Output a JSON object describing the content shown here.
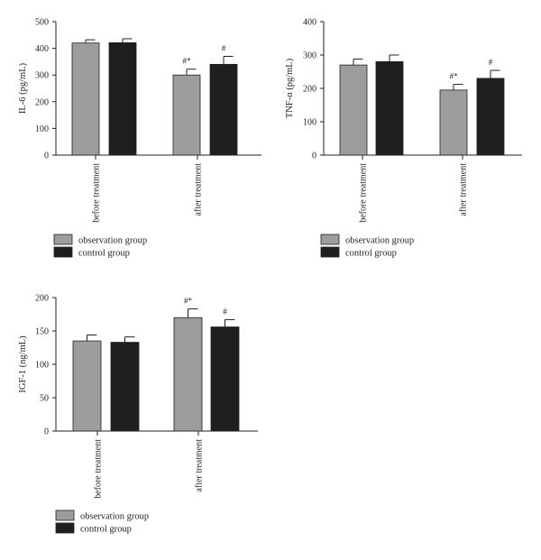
{
  "chart_data": [
    {
      "type": "bar",
      "ylabel": "IL-6 (pg/mL)",
      "ylim": [
        0,
        500
      ],
      "yticks": [
        0,
        100,
        200,
        300,
        400,
        500
      ],
      "categories": [
        "before treatment",
        "after treatment"
      ],
      "series": [
        {
          "name": "observation group",
          "color": "#9d9d9d",
          "values": [
            420,
            300
          ],
          "errors": [
            12,
            22
          ],
          "annotations": [
            "",
            "#*"
          ]
        },
        {
          "name": "control group",
          "color": "#1f1f1f",
          "values": [
            421,
            340
          ],
          "errors": [
            15,
            30
          ],
          "annotations": [
            "",
            "#"
          ]
        }
      ],
      "legend_position": "below"
    },
    {
      "type": "bar",
      "ylabel": "TNF-α (pg/mL)",
      "ylim": [
        0,
        400
      ],
      "yticks": [
        0,
        100,
        200,
        300,
        400
      ],
      "categories": [
        "before treatment",
        "after treatment"
      ],
      "series": [
        {
          "name": "observation group",
          "color": "#9d9d9d",
          "values": [
            270,
            195
          ],
          "errors": [
            18,
            17
          ],
          "annotations": [
            "",
            "#*"
          ]
        },
        {
          "name": "control group",
          "color": "#1f1f1f",
          "values": [
            280,
            230
          ],
          "errors": [
            20,
            24
          ],
          "annotations": [
            "",
            "#"
          ]
        }
      ],
      "legend_position": "below"
    },
    {
      "type": "bar",
      "ylabel": "IGF-1 (ng/mL)",
      "ylim": [
        0,
        200
      ],
      "yticks": [
        0,
        50,
        100,
        150,
        200
      ],
      "categories": [
        "before treatment",
        "after treatment"
      ],
      "series": [
        {
          "name": "observation group",
          "color": "#9d9d9d",
          "values": [
            135,
            170
          ],
          "errors": [
            9,
            13
          ],
          "annotations": [
            "",
            "#*"
          ]
        },
        {
          "name": "control group",
          "color": "#1f1f1f",
          "values": [
            133,
            156
          ],
          "errors": [
            8,
            11
          ],
          "annotations": [
            "",
            "#"
          ]
        }
      ],
      "legend_position": "below"
    }
  ]
}
